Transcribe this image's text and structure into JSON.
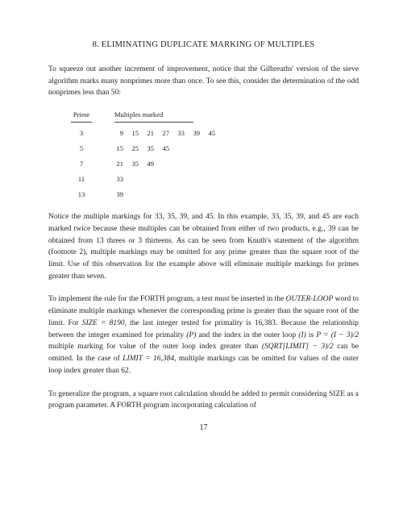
{
  "heading": {
    "number": "8.",
    "title": "ELIMINATING DUPLICATE MARKING OF MULTIPLES"
  },
  "para1": "To squeeze out another increment of improvement, notice that the Gilbreaths' version of the sieve algorithm marks many nonprimes more than once. To see this, consider the determination of the odd nonprimes less than 50:",
  "table": {
    "col_prime": "Prime",
    "col_mult": "Multiples marked",
    "rows": [
      {
        "prime": "3",
        "mults": [
          "9",
          "15",
          "21",
          "27",
          "33",
          "39",
          "45"
        ]
      },
      {
        "prime": "5",
        "mults": [
          "15",
          "25",
          "35",
          "45"
        ]
      },
      {
        "prime": "7",
        "mults": [
          "21",
          "35",
          "49"
        ]
      },
      {
        "prime": "11",
        "mults": [
          "33"
        ]
      },
      {
        "prime": "13",
        "mults": [
          "39"
        ]
      }
    ]
  },
  "para2": "Notice the multiple markings for 33, 35, 39, and 45. In this example, 33, 35, 39, and 45 are each marked twice because these multiples can be obtained from either of two products, e.g., 39 can be obtained from 13 threes or 3 thirteens. As can be seen from Knuth's statement of the algorithm (footnote 2), multiple markings may be omitted for any prime greater than the square root of the limit. Use of this observation for the example above will eliminate multiple markings for primes greater than seven.",
  "para3_pre": "To implement the rule for the FORTH program, a test must be inserted in the ",
  "para3_outerloop": "OUTER-LOOP",
  "para3_mid1": " word to eliminate multiple markings whenever the corresponding prime is greater than the square root of the limit. For ",
  "para3_size": "SIZE = 8190",
  "para3_mid2": ", the last integer tested for primality is 16,383. Because the relationship between the integer examined for primality ",
  "para3_P": "(P)",
  "para3_mid3": " and the index in the outer loop ",
  "para3_I": "(I)",
  "para3_mid4": " is ",
  "para3_eq1": "P = (I − 3)/2",
  "para3_mid5": " multiple marking for value of the outer loop index greater than ",
  "para3_eq2": "(SQRT[LIMIT] − 3)/2",
  "para3_mid6": " can be omitted. In the case of ",
  "para3_limit": "LIMIT = 16,384",
  "para3_mid7": ", multiple markings can be omitted for values of the outer loop index greater than 62.",
  "para4": "To generalize the program, a square root calculation should be added to permit considering SIZE as a program parameter. A FORTH program incorporating calculation of",
  "pagenum": "17"
}
